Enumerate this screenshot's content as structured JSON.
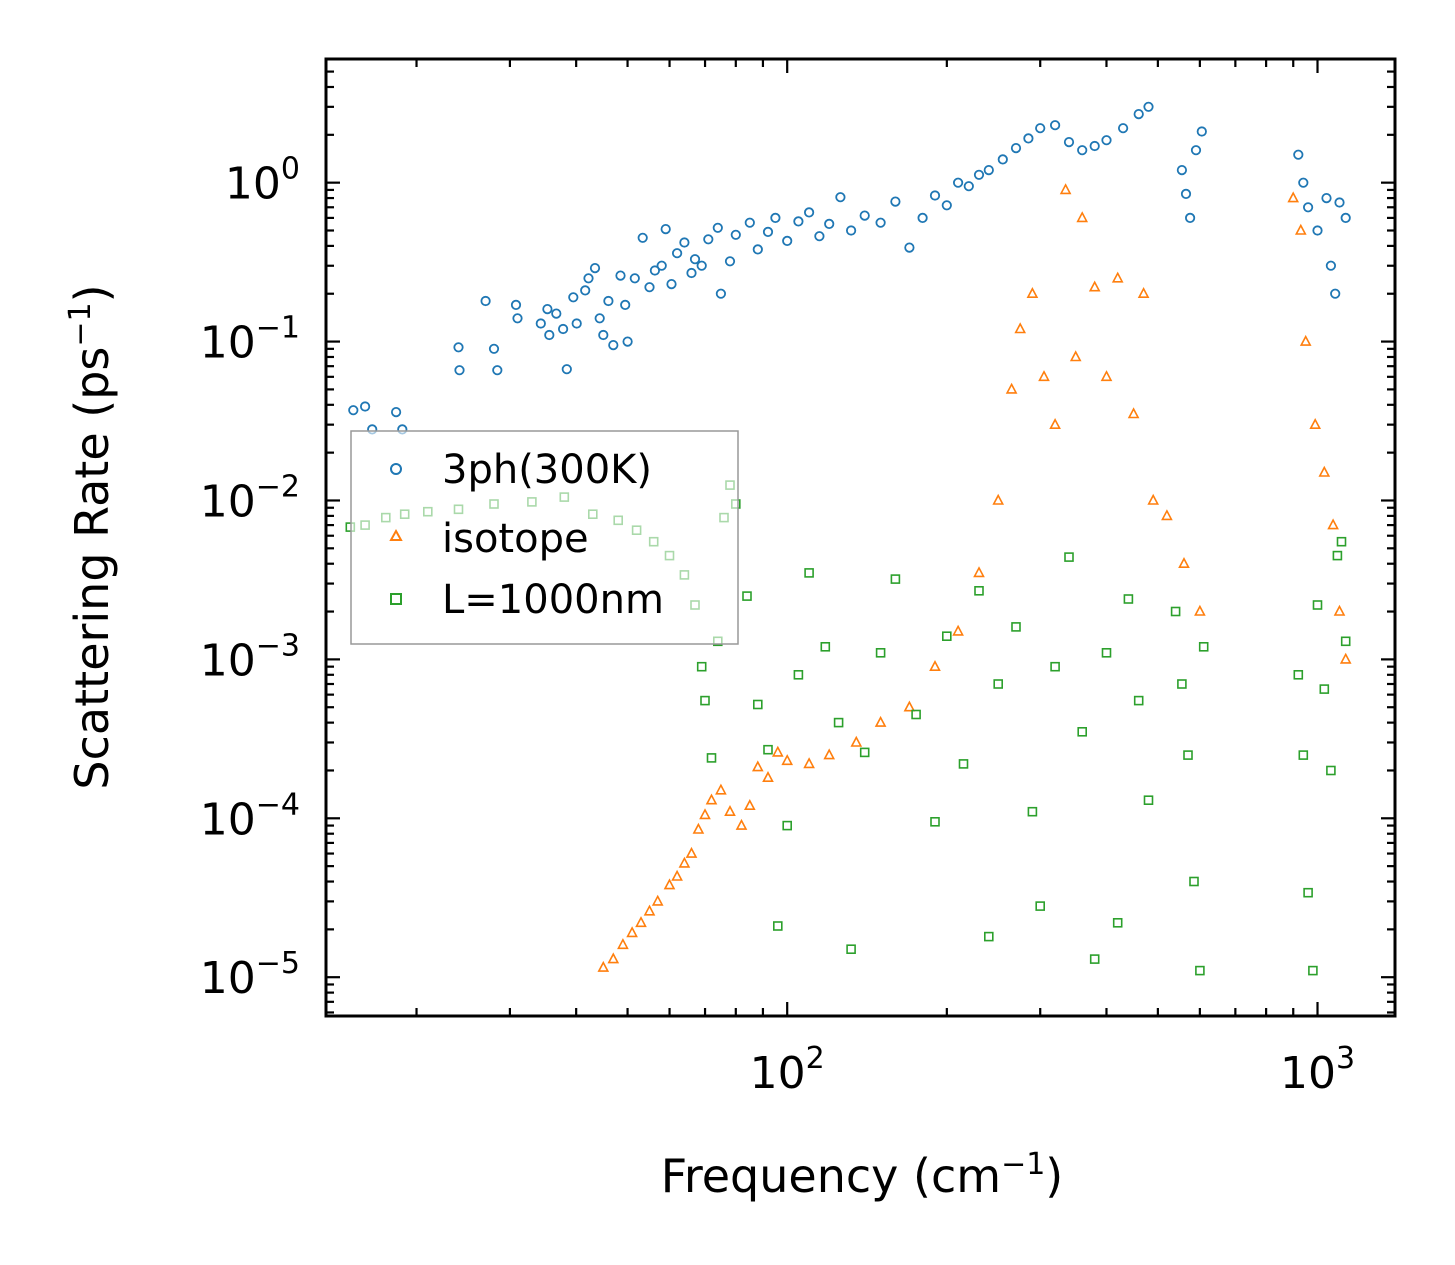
{
  "chart_data": {
    "type": "scatter",
    "x_scale": "log",
    "y_scale": "log",
    "xlabel": "Frequency",
    "xlabel_unit_base": "cm",
    "xlabel_unit_exp": "−1",
    "xlabel_close": ")",
    "ylabel": "Scattering Rate",
    "ylabel_unit_base": "ps",
    "ylabel_unit_exp": "−1",
    "ylabel_close": ")",
    "xlim": [
      13.5,
      1400
    ],
    "ylim": [
      5.7e-06,
      6.0
    ],
    "x_ticks": [
      {
        "value": 100,
        "base": "10",
        "exp": "2"
      },
      {
        "value": 1000,
        "base": "10",
        "exp": "3"
      }
    ],
    "y_ticks": [
      {
        "value": 1,
        "base": "10",
        "exp": "0"
      },
      {
        "value": 0.1,
        "base": "10",
        "exp": "−1"
      },
      {
        "value": 0.01,
        "base": "10",
        "exp": "−2"
      },
      {
        "value": 0.001,
        "base": "10",
        "exp": "−3"
      },
      {
        "value": 0.0001,
        "base": "10",
        "exp": "−4"
      },
      {
        "value": 1e-05,
        "base": "10",
        "exp": "−5"
      }
    ],
    "legend_position": "center-left",
    "series": [
      {
        "name": "3ph(300K)",
        "marker": "circle",
        "color": "#1f77b4",
        "points": [
          [
            15.2,
            0.037
          ],
          [
            16.0,
            0.039
          ],
          [
            16.5,
            0.028
          ],
          [
            18.3,
            0.036
          ],
          [
            18.8,
            0.028
          ],
          [
            24.0,
            0.092
          ],
          [
            24.1,
            0.066
          ],
          [
            27.0,
            0.18
          ],
          [
            28.0,
            0.09
          ],
          [
            28.4,
            0.066
          ],
          [
            30.8,
            0.17
          ],
          [
            31.0,
            0.14
          ],
          [
            34.3,
            0.13
          ],
          [
            35.3,
            0.16
          ],
          [
            35.6,
            0.11
          ],
          [
            36.7,
            0.15
          ],
          [
            37.8,
            0.12
          ],
          [
            38.4,
            0.067
          ],
          [
            39.5,
            0.19
          ],
          [
            40.1,
            0.13
          ],
          [
            41.6,
            0.21
          ],
          [
            42.2,
            0.25
          ],
          [
            43.4,
            0.29
          ],
          [
            44.3,
            0.14
          ],
          [
            45.0,
            0.11
          ],
          [
            46.0,
            0.18
          ],
          [
            47.0,
            0.095
          ],
          [
            48.5,
            0.26
          ],
          [
            49.5,
            0.17
          ],
          [
            50.0,
            0.1
          ],
          [
            51.6,
            0.25
          ],
          [
            53.4,
            0.45
          ],
          [
            55.0,
            0.22
          ],
          [
            56.3,
            0.28
          ],
          [
            58.0,
            0.3
          ],
          [
            59.0,
            0.51
          ],
          [
            60.5,
            0.23
          ],
          [
            62.0,
            0.36
          ],
          [
            64.0,
            0.42
          ],
          [
            66.0,
            0.27
          ],
          [
            67.0,
            0.33
          ],
          [
            69.0,
            0.3
          ],
          [
            71.0,
            0.44
          ],
          [
            74.0,
            0.52
          ],
          [
            75.0,
            0.2
          ],
          [
            78.0,
            0.32
          ],
          [
            80.0,
            0.47
          ],
          [
            85.0,
            0.56
          ],
          [
            88.0,
            0.38
          ],
          [
            92.0,
            0.49
          ],
          [
            95.0,
            0.6
          ],
          [
            100.0,
            0.43
          ],
          [
            105.0,
            0.57
          ],
          [
            110.0,
            0.65
          ],
          [
            115.0,
            0.46
          ],
          [
            120.0,
            0.55
          ],
          [
            126.0,
            0.81
          ],
          [
            132.0,
            0.5
          ],
          [
            140.0,
            0.62
          ],
          [
            150.0,
            0.56
          ],
          [
            160.0,
            0.76
          ],
          [
            170.0,
            0.39
          ],
          [
            180.0,
            0.6
          ],
          [
            190.0,
            0.83
          ],
          [
            200.0,
            0.72
          ],
          [
            210.0,
            1.0
          ],
          [
            220.0,
            0.95
          ],
          [
            230.0,
            1.12
          ],
          [
            240.0,
            1.2
          ],
          [
            255.0,
            1.4
          ],
          [
            270.0,
            1.65
          ],
          [
            285.0,
            1.9
          ],
          [
            300.0,
            2.2
          ],
          [
            320.0,
            2.3
          ],
          [
            340.0,
            1.8
          ],
          [
            360.0,
            1.6
          ],
          [
            380.0,
            1.7
          ],
          [
            400.0,
            1.85
          ],
          [
            430.0,
            2.2
          ],
          [
            460.0,
            2.7
          ],
          [
            480.0,
            3.0
          ],
          [
            555.0,
            1.2
          ],
          [
            565.0,
            0.85
          ],
          [
            575.0,
            0.6
          ],
          [
            590.0,
            1.6
          ],
          [
            605.0,
            2.1
          ],
          [
            920.0,
            1.5
          ],
          [
            940.0,
            1.0
          ],
          [
            960.0,
            0.7
          ],
          [
            1000.0,
            0.5
          ],
          [
            1040.0,
            0.8
          ],
          [
            1060.0,
            0.3
          ],
          [
            1080.0,
            0.2
          ],
          [
            1100.0,
            0.75
          ],
          [
            1130.0,
            0.6
          ]
        ]
      },
      {
        "name": "isotope",
        "marker": "triangle",
        "color": "#ff7f0e",
        "points": [
          [
            45.0,
            1.15e-05
          ],
          [
            47.0,
            1.3e-05
          ],
          [
            49.0,
            1.6e-05
          ],
          [
            51.0,
            1.9e-05
          ],
          [
            53.0,
            2.2e-05
          ],
          [
            55.0,
            2.6e-05
          ],
          [
            57.0,
            3e-05
          ],
          [
            60.0,
            3.8e-05
          ],
          [
            62.0,
            4.3e-05
          ],
          [
            64.0,
            5.2e-05
          ],
          [
            66.0,
            6e-05
          ],
          [
            68.0,
            8.5e-05
          ],
          [
            70.0,
            0.000105
          ],
          [
            72.0,
            0.00013
          ],
          [
            75.0,
            0.00015
          ],
          [
            78.0,
            0.00011
          ],
          [
            82.0,
            9e-05
          ],
          [
            85.0,
            0.00012
          ],
          [
            88.0,
            0.00021
          ],
          [
            92.0,
            0.00018
          ],
          [
            96.0,
            0.00026
          ],
          [
            100.0,
            0.00023
          ],
          [
            110.0,
            0.00022
          ],
          [
            120.0,
            0.00025
          ],
          [
            135.0,
            0.0003
          ],
          [
            150.0,
            0.0004
          ],
          [
            170.0,
            0.0005
          ],
          [
            190.0,
            0.0009
          ],
          [
            210.0,
            0.0015
          ],
          [
            230.0,
            0.0035
          ],
          [
            250.0,
            0.01
          ],
          [
            265.0,
            0.05
          ],
          [
            275.0,
            0.12
          ],
          [
            290.0,
            0.2
          ],
          [
            305.0,
            0.06
          ],
          [
            320.0,
            0.03
          ],
          [
            335.0,
            0.9
          ],
          [
            350.0,
            0.08
          ],
          [
            360.0,
            0.6
          ],
          [
            380.0,
            0.22
          ],
          [
            400.0,
            0.06
          ],
          [
            420.0,
            0.25
          ],
          [
            450.0,
            0.035
          ],
          [
            470.0,
            0.2
          ],
          [
            490.0,
            0.01
          ],
          [
            520.0,
            0.008
          ],
          [
            560.0,
            0.004
          ],
          [
            600.0,
            0.002
          ],
          [
            900.0,
            0.8
          ],
          [
            930.0,
            0.5
          ],
          [
            950.0,
            0.1
          ],
          [
            990.0,
            0.03
          ],
          [
            1030.0,
            0.015
          ],
          [
            1070.0,
            0.007
          ],
          [
            1100.0,
            0.002
          ],
          [
            1130.0,
            0.001
          ]
        ]
      },
      {
        "name": "L=1000nm",
        "marker": "square",
        "color": "#2ca02c",
        "points": [
          [
            15.0,
            0.0068
          ],
          [
            16.0,
            0.007
          ],
          [
            17.5,
            0.0078
          ],
          [
            19.0,
            0.0082
          ],
          [
            21.0,
            0.0085
          ],
          [
            24.0,
            0.0088
          ],
          [
            28.0,
            0.0095
          ],
          [
            33.0,
            0.0098
          ],
          [
            38.0,
            0.0105
          ],
          [
            43.0,
            0.0082
          ],
          [
            48.0,
            0.0075
          ],
          [
            52.0,
            0.0065
          ],
          [
            56.0,
            0.0055
          ],
          [
            60.0,
            0.0045
          ],
          [
            64.0,
            0.0034
          ],
          [
            67.0,
            0.0022
          ],
          [
            69.0,
            0.0009
          ],
          [
            70.0,
            0.00055
          ],
          [
            72.0,
            0.00024
          ],
          [
            74.0,
            0.0013
          ],
          [
            76.0,
            0.0078
          ],
          [
            78.0,
            0.0125
          ],
          [
            80.0,
            0.0095
          ],
          [
            84.0,
            0.0025
          ],
          [
            88.0,
            0.00052
          ],
          [
            92.0,
            0.00027
          ],
          [
            96.0,
            2.1e-05
          ],
          [
            100.0,
            9e-05
          ],
          [
            105.0,
            0.0008
          ],
          [
            110.0,
            0.0035
          ],
          [
            118.0,
            0.0012
          ],
          [
            125.0,
            0.0004
          ],
          [
            132.0,
            1.5e-05
          ],
          [
            140.0,
            0.00026
          ],
          [
            150.0,
            0.0011
          ],
          [
            160.0,
            0.0032
          ],
          [
            175.0,
            0.00045
          ],
          [
            190.0,
            9.5e-05
          ],
          [
            200.0,
            0.0014
          ],
          [
            215.0,
            0.00022
          ],
          [
            230.0,
            0.0027
          ],
          [
            240.0,
            1.8e-05
          ],
          [
            250.0,
            0.0007
          ],
          [
            270.0,
            0.0016
          ],
          [
            290.0,
            0.00011
          ],
          [
            300.0,
            2.8e-05
          ],
          [
            320.0,
            0.0009
          ],
          [
            340.0,
            0.0044
          ],
          [
            360.0,
            0.00035
          ],
          [
            380.0,
            1.3e-05
          ],
          [
            400.0,
            0.0011
          ],
          [
            420.0,
            2.2e-05
          ],
          [
            440.0,
            0.0024
          ],
          [
            460.0,
            0.00055
          ],
          [
            480.0,
            0.00013
          ],
          [
            540.0,
            0.002
          ],
          [
            555.0,
            0.0007
          ],
          [
            570.0,
            0.00025
          ],
          [
            585.0,
            4e-05
          ],
          [
            600.0,
            1.1e-05
          ],
          [
            610.0,
            0.0012
          ],
          [
            920.0,
            0.0008
          ],
          [
            940.0,
            0.00025
          ],
          [
            960.0,
            3.4e-05
          ],
          [
            980.0,
            1.1e-05
          ],
          [
            1000.0,
            0.0022
          ],
          [
            1030.0,
            0.00065
          ],
          [
            1060.0,
            0.0002
          ],
          [
            1090.0,
            0.0045
          ],
          [
            1110.0,
            0.0055
          ],
          [
            1130.0,
            0.0013
          ]
        ]
      }
    ]
  }
}
